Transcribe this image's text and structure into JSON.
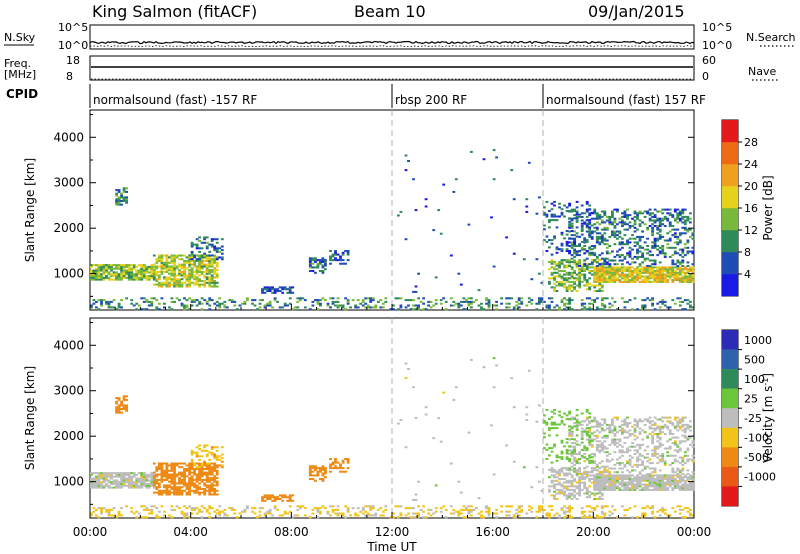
{
  "header": {
    "station": "King Salmon (fitACF)",
    "beam": "Beam 10",
    "date": "09/Jan/2015"
  },
  "top_strips": {
    "nsky": {
      "label": "N.Sky",
      "ticks": [
        "10^5",
        "10^0"
      ]
    },
    "nsearch": {
      "label": "N.Search",
      "ticks": [
        "10^5",
        "10^0"
      ]
    },
    "freq": {
      "label_line1": "Freq.",
      "label_line2": "[MHz]",
      "ticks": [
        18,
        8
      ]
    },
    "nave": {
      "label": "Nave",
      "ticks": [
        60,
        0
      ]
    },
    "cpid": {
      "label": "CPID"
    }
  },
  "modes": [
    {
      "label": "normalsound (fast) -157 RF",
      "start_hour": 0,
      "end_hour": 12
    },
    {
      "label": "rbsp 200 RF",
      "start_hour": 12,
      "end_hour": 18
    },
    {
      "label": "normalsound (fast) 157 RF",
      "start_hour": 18,
      "end_hour": 24
    }
  ],
  "axes": {
    "x_ticks": [
      "00:00",
      "04:00",
      "08:00",
      "12:00",
      "16:00",
      "20:00",
      "00:00"
    ],
    "x_range_hours": [
      0,
      24
    ],
    "xlabel": "Time UT",
    "y_ticks": [
      1000,
      2000,
      3000,
      4000
    ],
    "y_range_km": [
      200,
      4600
    ],
    "ylabel": "Slant Range [km]"
  },
  "power_colorbar": {
    "label": "Power [dB]",
    "ticks": [
      4,
      8,
      12,
      16,
      20,
      24,
      28
    ],
    "colors": [
      "#1a1ae6",
      "#1f4db3",
      "#2f8a5a",
      "#78b83a",
      "#e6d21a",
      "#f0a01e",
      "#ee6a14",
      "#e31a1c"
    ]
  },
  "velocity_colorbar": {
    "label": "Velocity [m s",
    "label_sup": "-1",
    "label_end": "]",
    "ticks": [
      "1000",
      "500",
      "100",
      "25",
      "-25",
      "-100",
      "-500",
      "-1000"
    ],
    "colors": [
      "#2b2bb5",
      "#2e62ab",
      "#2f8a5a",
      "#6cc63a",
      "#bdbdbd",
      "#f2c41a",
      "#ee8a14",
      "#ea5a16",
      "#e31a1c"
    ]
  },
  "chart_data": [
    {
      "type": "heatmap",
      "panel": "power",
      "ylabel": "Slant Range [km]",
      "xlabel": "Time UT",
      "colorbar": "Power [dB]",
      "blobs": [
        {
          "t0": 0.0,
          "t1": 2.6,
          "r0": 850,
          "r1": 1200,
          "level": 14,
          "density": 0.85
        },
        {
          "t0": 1.0,
          "t1": 1.5,
          "r0": 2500,
          "r1": 2900,
          "level": 10,
          "density": 0.6
        },
        {
          "t0": 2.5,
          "t1": 5.0,
          "r0": 700,
          "r1": 1400,
          "level": 16,
          "density": 0.7
        },
        {
          "t0": 4.0,
          "t1": 5.2,
          "r0": 1300,
          "r1": 1800,
          "level": 8,
          "density": 0.35
        },
        {
          "t0": 6.8,
          "t1": 8.0,
          "r0": 560,
          "r1": 700,
          "level": 6,
          "density": 0.6
        },
        {
          "t0": 8.7,
          "t1": 9.3,
          "r0": 1000,
          "r1": 1350,
          "level": 8,
          "density": 0.5
        },
        {
          "t0": 9.5,
          "t1": 10.2,
          "r0": 1200,
          "r1": 1500,
          "level": 6,
          "density": 0.4
        },
        {
          "t0": 0.0,
          "t1": 24.0,
          "r0": 200,
          "r1": 450,
          "level": 10,
          "density": 0.28
        },
        {
          "t0": 18.2,
          "t1": 20.4,
          "r0": 600,
          "r1": 1300,
          "level": 14,
          "density": 0.55
        },
        {
          "t0": 20.0,
          "t1": 24.0,
          "r0": 800,
          "r1": 1150,
          "level": 18,
          "density": 0.9
        },
        {
          "t0": 19.0,
          "t1": 24.0,
          "r0": 1150,
          "r1": 2400,
          "level": 8,
          "density": 0.35
        },
        {
          "t0": 18.0,
          "t1": 20.0,
          "r0": 1400,
          "r1": 2600,
          "level": 6,
          "density": 0.2
        },
        {
          "t0": 12.2,
          "t1": 18.0,
          "r0": 500,
          "r1": 3800,
          "level": 6,
          "density": 0.01
        }
      ]
    },
    {
      "type": "heatmap",
      "panel": "velocity",
      "ylabel": "Slant Range [km]",
      "xlabel": "Time UT",
      "colorbar": "Velocity [m s-1]",
      "blobs": [
        {
          "t0": 0.0,
          "t1": 2.6,
          "r0": 850,
          "r1": 1200,
          "level": 0,
          "density": 0.85
        },
        {
          "t0": 1.0,
          "t1": 1.5,
          "r0": 2500,
          "r1": 2900,
          "level": -150,
          "density": 0.6
        },
        {
          "t0": 2.5,
          "t1": 5.0,
          "r0": 700,
          "r1": 1400,
          "level": -150,
          "density": 0.7
        },
        {
          "t0": 4.0,
          "t1": 5.2,
          "r0": 1300,
          "r1": 1800,
          "level": -80,
          "density": 0.35
        },
        {
          "t0": 6.8,
          "t1": 8.0,
          "r0": 560,
          "r1": 700,
          "level": -150,
          "density": 0.6
        },
        {
          "t0": 8.7,
          "t1": 9.3,
          "r0": 1000,
          "r1": 1350,
          "level": -150,
          "density": 0.5
        },
        {
          "t0": 9.5,
          "t1": 10.2,
          "r0": 1200,
          "r1": 1500,
          "level": -150,
          "density": 0.4
        },
        {
          "t0": 0.0,
          "t1": 24.0,
          "r0": 200,
          "r1": 450,
          "level": -40,
          "density": 0.28
        },
        {
          "t0": 18.2,
          "t1": 20.4,
          "r0": 600,
          "r1": 1300,
          "level": 0,
          "density": 0.55
        },
        {
          "t0": 20.0,
          "t1": 24.0,
          "r0": 800,
          "r1": 1150,
          "level": 0,
          "density": 0.9
        },
        {
          "t0": 19.0,
          "t1": 24.0,
          "r0": 1150,
          "r1": 2400,
          "level": 0,
          "density": 0.35
        },
        {
          "t0": 18.0,
          "t1": 20.0,
          "r0": 1400,
          "r1": 2600,
          "level": 60,
          "density": 0.2
        },
        {
          "t0": 12.2,
          "t1": 18.0,
          "r0": 500,
          "r1": 3800,
          "level": 0,
          "density": 0.01
        }
      ]
    }
  ]
}
